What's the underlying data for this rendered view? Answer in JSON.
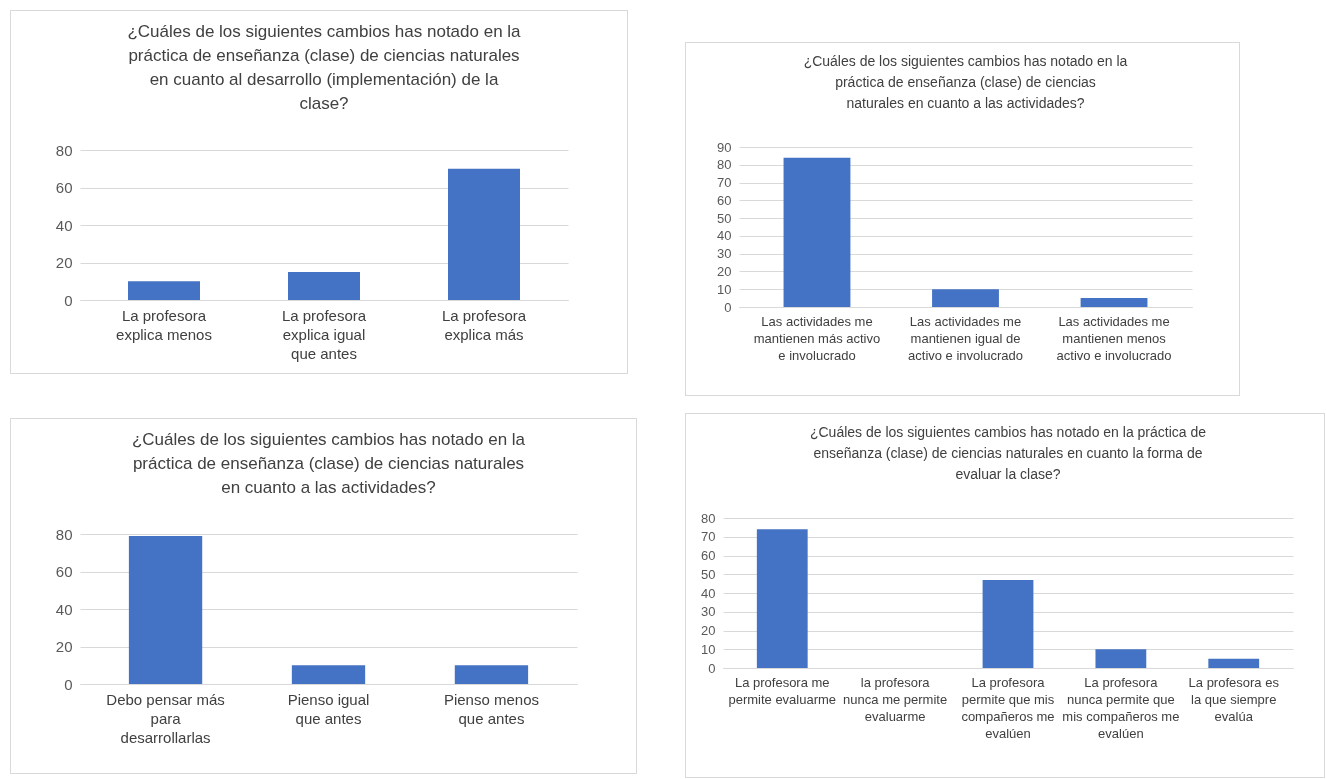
{
  "chart_data": [
    {
      "type": "bar",
      "title": "¿Cuáles de los siguientes cambios has notado en la práctica de enseñanza (clase) de ciencias naturales en cuanto al desarrollo (implementación) de la clase?",
      "categories": [
        "La profesora explica menos",
        "La profesora explica igual que antes",
        "La profesora explica más"
      ],
      "values": [
        10,
        15,
        70
      ],
      "color": "#4472c4",
      "ylim": [
        0,
        80
      ],
      "yticks": [
        0,
        20,
        40,
        60,
        80
      ],
      "grid": "y"
    },
    {
      "type": "bar",
      "title": "¿Cuáles de los siguientes cambios has notado en la práctica de enseñanza (clase) de ciencias naturales en cuanto a las actividades?",
      "categories": [
        "Las actividades me mantienen más activo e involucrado",
        "Las actividades me mantienen igual de activo e involucrado",
        "Las actividades me mantienen menos activo e involucrado"
      ],
      "values": [
        84,
        10,
        5
      ],
      "color": "#4472c4",
      "ylim": [
        0,
        90
      ],
      "yticks": [
        0,
        10,
        20,
        30,
        40,
        50,
        60,
        70,
        80,
        90
      ],
      "grid": "y"
    },
    {
      "type": "bar",
      "title": "¿Cuáles de los siguientes cambios has notado en la práctica de enseñanza (clase) de ciencias naturales en cuanto a las actividades?",
      "categories": [
        "Debo pensar más para desarrollarlas",
        "Pienso igual que antes",
        "Pienso menos que antes"
      ],
      "values": [
        79,
        10,
        10
      ],
      "color": "#4472c4",
      "ylim": [
        0,
        80
      ],
      "yticks": [
        0,
        20,
        40,
        60,
        80
      ],
      "grid": "y"
    },
    {
      "type": "bar",
      "title": "¿Cuáles de los siguientes cambios has notado en la práctica de enseñanza (clase) de ciencias naturales en cuanto la forma de evaluar la clase?",
      "categories": [
        "La profesora me permite evaluarme",
        "la profesora nunca me permite evaluarme",
        "La profesora permite que mis compañeros me evalúen",
        "La profesora nunca permite que mis compañeros me evalúen",
        "La profesora es la que siempre evalúa"
      ],
      "values": [
        74,
        0,
        47,
        10,
        5
      ],
      "color": "#4472c4",
      "ylim": [
        0,
        80
      ],
      "yticks": [
        0,
        10,
        20,
        30,
        40,
        50,
        60,
        70,
        80
      ],
      "grid": "y"
    }
  ]
}
